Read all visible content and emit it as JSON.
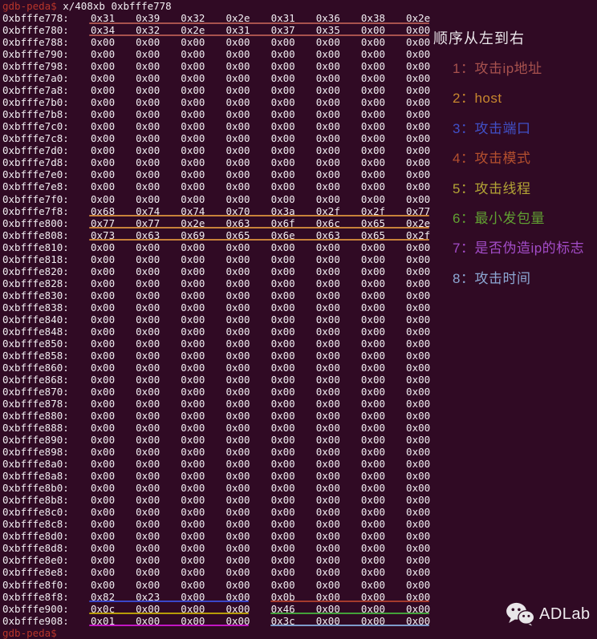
{
  "terminal": {
    "bg": "#300a24",
    "fg": "#f2eef2",
    "prompt": "gdb-peda$",
    "prompt_color": "#b8352a",
    "command": "x/408xb 0xbfffe778",
    "trailing_prompt": "gdb-peda$",
    "rows": [
      {
        "addr": "0xbfffe778:",
        "bytes": "0x31 0x39 0x32 0x2e 0x31 0x36 0x38 0x2e",
        "marks": [
          {
            "span": "full",
            "color": "#a8524e"
          }
        ]
      },
      {
        "addr": "0xbfffe780:",
        "bytes": "0x34 0x32 0x2e 0x31 0x37 0x35 0x00 0x00",
        "marks": [
          {
            "span": "full",
            "color": "#a8524e"
          }
        ]
      },
      {
        "addr": "0xbfffe788:",
        "bytes": "0x00 0x00 0x00 0x00 0x00 0x00 0x00 0x00",
        "marks": []
      },
      {
        "addr": "0xbfffe790:",
        "bytes": "0x00 0x00 0x00 0x00 0x00 0x00 0x00 0x00",
        "marks": []
      },
      {
        "addr": "0xbfffe798:",
        "bytes": "0x00 0x00 0x00 0x00 0x00 0x00 0x00 0x00",
        "marks": []
      },
      {
        "addr": "0xbfffe7a0:",
        "bytes": "0x00 0x00 0x00 0x00 0x00 0x00 0x00 0x00",
        "marks": []
      },
      {
        "addr": "0xbfffe7a8:",
        "bytes": "0x00 0x00 0x00 0x00 0x00 0x00 0x00 0x00",
        "marks": []
      },
      {
        "addr": "0xbfffe7b0:",
        "bytes": "0x00 0x00 0x00 0x00 0x00 0x00 0x00 0x00",
        "marks": []
      },
      {
        "addr": "0xbfffe7b8:",
        "bytes": "0x00 0x00 0x00 0x00 0x00 0x00 0x00 0x00",
        "marks": []
      },
      {
        "addr": "0xbfffe7c0:",
        "bytes": "0x00 0x00 0x00 0x00 0x00 0x00 0x00 0x00",
        "marks": []
      },
      {
        "addr": "0xbfffe7c8:",
        "bytes": "0x00 0x00 0x00 0x00 0x00 0x00 0x00 0x00",
        "marks": []
      },
      {
        "addr": "0xbfffe7d0:",
        "bytes": "0x00 0x00 0x00 0x00 0x00 0x00 0x00 0x00",
        "marks": []
      },
      {
        "addr": "0xbfffe7d8:",
        "bytes": "0x00 0x00 0x00 0x00 0x00 0x00 0x00 0x00",
        "marks": []
      },
      {
        "addr": "0xbfffe7e0:",
        "bytes": "0x00 0x00 0x00 0x00 0x00 0x00 0x00 0x00",
        "marks": []
      },
      {
        "addr": "0xbfffe7e8:",
        "bytes": "0x00 0x00 0x00 0x00 0x00 0x00 0x00 0x00",
        "marks": []
      },
      {
        "addr": "0xbfffe7f0:",
        "bytes": "0x00 0x00 0x00 0x00 0x00 0x00 0x00 0x00",
        "marks": []
      },
      {
        "addr": "0xbfffe7f8:",
        "bytes": "0x68 0x74 0x74 0x70 0x3a 0x2f 0x2f 0x77",
        "marks": [
          {
            "span": "full",
            "color": "#c8823a"
          }
        ]
      },
      {
        "addr": "0xbfffe800:",
        "bytes": "0x77 0x77 0x2e 0x63 0x6f 0x6c 0x65 0x2e",
        "marks": [
          {
            "span": "full",
            "color": "#c8823a"
          }
        ]
      },
      {
        "addr": "0xbfffe808:",
        "bytes": "0x73 0x63 0x69 0x65 0x6e 0x63 0x65 0x2f",
        "marks": [
          {
            "span": "full",
            "color": "#c8823a"
          }
        ]
      },
      {
        "addr": "0xbfffe810:",
        "bytes": "0x00 0x00 0x00 0x00 0x00 0x00 0x00 0x00",
        "marks": []
      },
      {
        "addr": "0xbfffe818:",
        "bytes": "0x00 0x00 0x00 0x00 0x00 0x00 0x00 0x00",
        "marks": []
      },
      {
        "addr": "0xbfffe820:",
        "bytes": "0x00 0x00 0x00 0x00 0x00 0x00 0x00 0x00",
        "marks": []
      },
      {
        "addr": "0xbfffe828:",
        "bytes": "0x00 0x00 0x00 0x00 0x00 0x00 0x00 0x00",
        "marks": []
      },
      {
        "addr": "0xbfffe830:",
        "bytes": "0x00 0x00 0x00 0x00 0x00 0x00 0x00 0x00",
        "marks": []
      },
      {
        "addr": "0xbfffe838:",
        "bytes": "0x00 0x00 0x00 0x00 0x00 0x00 0x00 0x00",
        "marks": []
      },
      {
        "addr": "0xbfffe840:",
        "bytes": "0x00 0x00 0x00 0x00 0x00 0x00 0x00 0x00",
        "marks": []
      },
      {
        "addr": "0xbfffe848:",
        "bytes": "0x00 0x00 0x00 0x00 0x00 0x00 0x00 0x00",
        "marks": []
      },
      {
        "addr": "0xbfffe850:",
        "bytes": "0x00 0x00 0x00 0x00 0x00 0x00 0x00 0x00",
        "marks": []
      },
      {
        "addr": "0xbfffe858:",
        "bytes": "0x00 0x00 0x00 0x00 0x00 0x00 0x00 0x00",
        "marks": []
      },
      {
        "addr": "0xbfffe860:",
        "bytes": "0x00 0x00 0x00 0x00 0x00 0x00 0x00 0x00",
        "marks": []
      },
      {
        "addr": "0xbfffe868:",
        "bytes": "0x00 0x00 0x00 0x00 0x00 0x00 0x00 0x00",
        "marks": []
      },
      {
        "addr": "0xbfffe870:",
        "bytes": "0x00 0x00 0x00 0x00 0x00 0x00 0x00 0x00",
        "marks": []
      },
      {
        "addr": "0xbfffe878:",
        "bytes": "0x00 0x00 0x00 0x00 0x00 0x00 0x00 0x00",
        "marks": []
      },
      {
        "addr": "0xbfffe880:",
        "bytes": "0x00 0x00 0x00 0x00 0x00 0x00 0x00 0x00",
        "marks": []
      },
      {
        "addr": "0xbfffe888:",
        "bytes": "0x00 0x00 0x00 0x00 0x00 0x00 0x00 0x00",
        "marks": []
      },
      {
        "addr": "0xbfffe890:",
        "bytes": "0x00 0x00 0x00 0x00 0x00 0x00 0x00 0x00",
        "marks": []
      },
      {
        "addr": "0xbfffe898:",
        "bytes": "0x00 0x00 0x00 0x00 0x00 0x00 0x00 0x00",
        "marks": []
      },
      {
        "addr": "0xbfffe8a0:",
        "bytes": "0x00 0x00 0x00 0x00 0x00 0x00 0x00 0x00",
        "marks": []
      },
      {
        "addr": "0xbfffe8a8:",
        "bytes": "0x00 0x00 0x00 0x00 0x00 0x00 0x00 0x00",
        "marks": []
      },
      {
        "addr": "0xbfffe8b0:",
        "bytes": "0x00 0x00 0x00 0x00 0x00 0x00 0x00 0x00",
        "marks": []
      },
      {
        "addr": "0xbfffe8b8:",
        "bytes": "0x00 0x00 0x00 0x00 0x00 0x00 0x00 0x00",
        "marks": []
      },
      {
        "addr": "0xbfffe8c0:",
        "bytes": "0x00 0x00 0x00 0x00 0x00 0x00 0x00 0x00",
        "marks": []
      },
      {
        "addr": "0xbfffe8c8:",
        "bytes": "0x00 0x00 0x00 0x00 0x00 0x00 0x00 0x00",
        "marks": []
      },
      {
        "addr": "0xbfffe8d0:",
        "bytes": "0x00 0x00 0x00 0x00 0x00 0x00 0x00 0x00",
        "marks": []
      },
      {
        "addr": "0xbfffe8d8:",
        "bytes": "0x00 0x00 0x00 0x00 0x00 0x00 0x00 0x00",
        "marks": []
      },
      {
        "addr": "0xbfffe8e0:",
        "bytes": "0x00 0x00 0x00 0x00 0x00 0x00 0x00 0x00",
        "marks": []
      },
      {
        "addr": "0xbfffe8e8:",
        "bytes": "0x00 0x00 0x00 0x00 0x00 0x00 0x00 0x00",
        "marks": []
      },
      {
        "addr": "0xbfffe8f0:",
        "bytes": "0x00 0x00 0x00 0x00 0x00 0x00 0x00 0x00",
        "marks": []
      },
      {
        "addr": "0xbfffe8f8:",
        "bytes": "0x82 0x23 0x00 0x00 0x0b 0x00 0x00 0x00",
        "marks": [
          {
            "span": "left",
            "color": "#3a46c8"
          },
          {
            "span": "right",
            "color": "#a53a2c"
          }
        ]
      },
      {
        "addr": "0xbfffe900:",
        "bytes": "0x0c 0x00 0x00 0x00 0x46 0x00 0x00 0x00",
        "marks": [
          {
            "span": "left",
            "color": "#b79c08"
          },
          {
            "span": "right",
            "color": "#43a03a"
          }
        ]
      },
      {
        "addr": "0xbfffe908:",
        "bytes": "0x01 0x00 0x00 0x00 0x3c 0x00 0x00 0x00",
        "marks": [
          {
            "span": "left",
            "color": "#c317c3"
          },
          {
            "span": "right",
            "color": "#7f9ccc"
          }
        ]
      }
    ]
  },
  "legend": {
    "title": "顺序从左到右",
    "title_color": "#eae6ea",
    "items": [
      {
        "text": "1：攻击ip地址",
        "color": "#a8524e"
      },
      {
        "text": "2：host",
        "color": "#c8872e"
      },
      {
        "text": "3：攻击端口",
        "color": "#4150c8"
      },
      {
        "text": "4：攻击模式",
        "color": "#b5502e"
      },
      {
        "text": "5：攻击线程",
        "color": "#b3a435"
      },
      {
        "text": "6：最小发包量",
        "color": "#61a032"
      },
      {
        "text": "7：是否伪造ip的标志",
        "color": "#a34cc8"
      },
      {
        "text": "8：攻击时间",
        "color": "#8da8d4"
      }
    ]
  },
  "watermark": {
    "icon": "wechat-icon",
    "brand": "ADLab",
    "color": "#efecef"
  }
}
